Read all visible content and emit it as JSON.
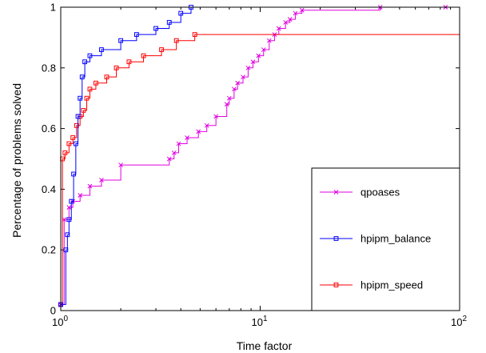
{
  "chart_data": {
    "type": "line",
    "xlabel": "Time factor",
    "ylabel": "Percentage of problems solved",
    "xscale": "log",
    "xlim": [
      1,
      100
    ],
    "ylim": [
      0,
      1
    ],
    "x_ticks": [
      {
        "base": "10",
        "exp": "0"
      },
      {
        "base": "10",
        "exp": "1"
      },
      {
        "base": "10",
        "exp": "2"
      }
    ],
    "y_tick_labels": [
      "0",
      "0.2",
      "0.4",
      "0.6",
      "0.8",
      "1"
    ],
    "grid": false,
    "legend_position": "bottom-right",
    "series": [
      {
        "name": "qpoases",
        "color": "#e000e0",
        "marker": "x",
        "x": [
          1.0,
          1.04,
          1.1,
          1.15,
          1.25,
          1.4,
          1.6,
          2.0,
          3.5,
          3.7,
          3.9,
          4.3,
          4.9,
          5.4,
          6.0,
          6.8,
          7.0,
          7.4,
          7.7,
          8.2,
          8.7,
          9.2,
          9.8,
          10.4,
          11.1,
          11.8,
          12.4,
          13.4,
          14.1,
          15.0,
          16.2,
          40.0,
          85.0
        ],
        "y": [
          0.02,
          0.3,
          0.34,
          0.36,
          0.38,
          0.41,
          0.43,
          0.48,
          0.5,
          0.52,
          0.55,
          0.57,
          0.59,
          0.61,
          0.64,
          0.68,
          0.7,
          0.73,
          0.75,
          0.77,
          0.8,
          0.82,
          0.84,
          0.86,
          0.89,
          0.91,
          0.93,
          0.95,
          0.96,
          0.98,
          0.99,
          1.0,
          1.0
        ]
      },
      {
        "name": "hpipm_balance",
        "color": "#0000ff",
        "marker": "square",
        "x": [
          1.0,
          1.06,
          1.08,
          1.1,
          1.13,
          1.16,
          1.19,
          1.22,
          1.25,
          1.28,
          1.32,
          1.4,
          1.6,
          2.0,
          2.4,
          3.0,
          3.5,
          4.0,
          4.5
        ],
        "y": [
          0.02,
          0.2,
          0.25,
          0.3,
          0.36,
          0.45,
          0.55,
          0.64,
          0.7,
          0.77,
          0.82,
          0.84,
          0.86,
          0.89,
          0.91,
          0.93,
          0.95,
          0.98,
          1.0
        ]
      },
      {
        "name": "hpipm_speed",
        "color": "#ff0000",
        "marker": "square",
        "x": [
          1.0,
          1.02,
          1.05,
          1.1,
          1.15,
          1.2,
          1.25,
          1.3,
          1.35,
          1.4,
          1.5,
          1.7,
          1.9,
          2.2,
          2.6,
          3.2,
          3.8,
          4.7,
          100
        ],
        "y": [
          0.02,
          0.5,
          0.52,
          0.55,
          0.57,
          0.61,
          0.64,
          0.66,
          0.7,
          0.73,
          0.75,
          0.77,
          0.8,
          0.82,
          0.84,
          0.86,
          0.89,
          0.91,
          0.91
        ]
      }
    ]
  }
}
